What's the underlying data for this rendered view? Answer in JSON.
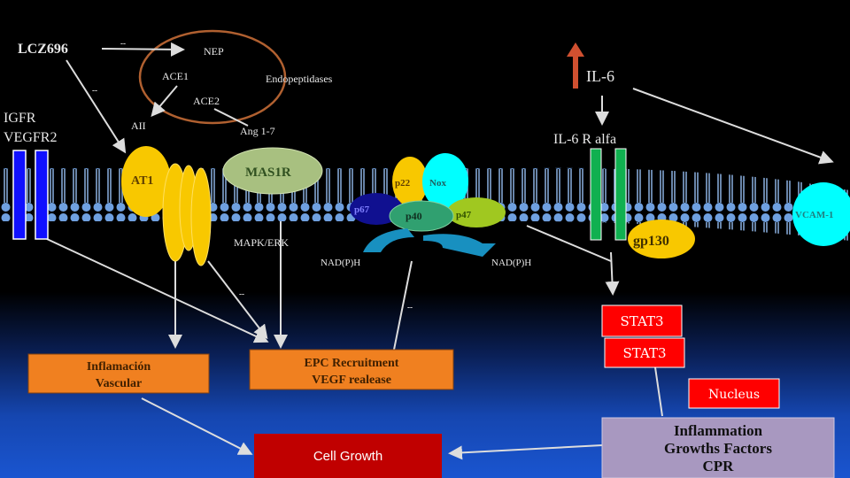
{
  "labels": {
    "lcz696": "LCZ696",
    "nep": "NEP",
    "ace1": "ACE1",
    "ace2": "ACE2",
    "endopeptidases": "Endopeptidases",
    "aii": "AII",
    "ang17": "Ang 1-7",
    "igfr": "IGFR",
    "vegfr2": "VEGFR2",
    "at1": "AT1",
    "mas1r": "MAS1R",
    "mapk_erk": "MAPK/ERK",
    "p22": "p22",
    "nox": "Nox",
    "p67": "p67",
    "p40": "p40",
    "p47": "p47",
    "nadph_left": "NAD(P)H",
    "nadph_right": "NAD(P)H",
    "il6": "IL-6",
    "il6r": "IL-6 R alfa",
    "gp130": "gp130",
    "vcam": "VCAM-1",
    "inhib_marks": [
      "--",
      "--",
      "--",
      "--"
    ]
  },
  "boxes": {
    "inflamacion": [
      "Inflamación",
      "Vascular"
    ],
    "epc": [
      "EPC Recruitment",
      "VEGF realease"
    ],
    "stat3_a": "STAT3",
    "stat3_b": "STAT3",
    "nucleus": "Nucleus",
    "inflammation": [
      "Inflammation",
      "Growths Factors",
      "CPR"
    ],
    "cell_growth": "Cell Growth"
  },
  "colors": {
    "orange_box": "#f08020",
    "red_box": "#ff0000",
    "cell_growth": "#c00000",
    "purple_box": "#a898c0",
    "receptor_blue": "#1010ff",
    "receptor_green": "#10b050",
    "at1_yellow": "#f8c800",
    "mas1r_green": "#a8c080",
    "nox_cyan": "#00ffff",
    "up_arrow": "#d05030"
  }
}
